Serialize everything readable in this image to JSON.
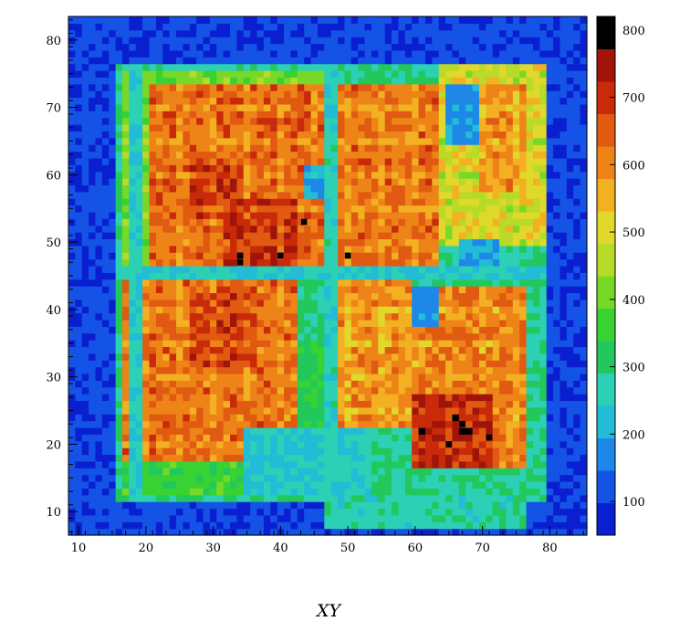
{
  "chart_data": {
    "type": "heatmap",
    "title": "",
    "xlabel": "XY",
    "ylabel": "",
    "xlim": [
      8.5,
      85.5
    ],
    "ylim": [
      6.5,
      83.5
    ],
    "bin_size": 1,
    "x_ticks": [
      "10",
      "20",
      "30",
      "40",
      "50",
      "60",
      "70",
      "80"
    ],
    "y_ticks": [
      "10",
      "20",
      "30",
      "40",
      "50",
      "60",
      "70",
      "80"
    ],
    "colorbar": {
      "min": 50,
      "max": 820,
      "ticks": [
        "100",
        "200",
        "300",
        "400",
        "500",
        "600",
        "700",
        "800"
      ],
      "palette": [
        "#0a1fd0",
        "#1553e6",
        "#1e88e8",
        "#22bcd6",
        "#2cd0b4",
        "#22c85c",
        "#38d232",
        "#78d828",
        "#b8da28",
        "#e0d82a",
        "#f2b022",
        "#ee8418",
        "#e05a12",
        "#c82a0a",
        "#a0140a",
        "#000000"
      ]
    },
    "grid": false,
    "regions": [
      {
        "label": "baseline noise",
        "x": [
          8.5,
          85.5
        ],
        "y": [
          6.5,
          83.5
        ],
        "value": 110
      },
      {
        "label": "outer frame",
        "x": [
          15.5,
          79.5
        ],
        "y": [
          11.5,
          76.5
        ],
        "value": 290
      },
      {
        "label": "upper-left inner rim",
        "x": [
          16.5,
          48
        ],
        "y": [
          45.5,
          75.5
        ],
        "value": 410
      },
      {
        "label": "upper-left modules",
        "x": [
          20.5,
          47.5
        ],
        "y": [
          46.5,
          73.5
        ],
        "value": 640
      },
      {
        "label": "hot block A",
        "x": [
          26.5,
          34.5
        ],
        "y": [
          53.5,
          61.5
        ],
        "value": 700
      },
      {
        "label": "hot block B",
        "x": [
          31.5,
          42.5
        ],
        "y": [
          46.5,
          56.5
        ],
        "value": 710
      },
      {
        "label": "cool pocket",
        "x": [
          43.5,
          48.5
        ],
        "y": [
          56.5,
          61.5
        ],
        "value": 210
      },
      {
        "label": "upper-center modules",
        "x": [
          48.5,
          63.5
        ],
        "y": [
          46.5,
          73.5
        ],
        "value": 630
      },
      {
        "label": "upper-right band",
        "x": [
          63.5,
          79.5
        ],
        "y": [
          49.5,
          76.5
        ],
        "value": 510
      },
      {
        "label": "upper-right modules",
        "x": [
          69.5,
          76.5
        ],
        "y": [
          57.5,
          73.5
        ],
        "value": 590
      },
      {
        "label": "upper-right gap",
        "x": [
          64.5,
          69.5
        ],
        "y": [
          64.5,
          73.5
        ],
        "value": 180
      },
      {
        "label": "right edge patch",
        "x": [
          66.5,
          72.5
        ],
        "y": [
          46.5,
          50.5
        ],
        "value": 200
      },
      {
        "label": "lower-left modules",
        "x": [
          16.5,
          42.5
        ],
        "y": [
          17.5,
          44.5
        ],
        "value": 630
      },
      {
        "label": "lower-left hot",
        "x": [
          26.5,
          36.5
        ],
        "y": [
          31.5,
          42.5
        ],
        "value": 690
      },
      {
        "label": "lower-left rim",
        "x": [
          16.5,
          36.5
        ],
        "y": [
          12.5,
          17.5
        ],
        "value": 360
      },
      {
        "label": "lower-center cool",
        "x": [
          42.5,
          48.5
        ],
        "y": [
          22.5,
          35.5
        ],
        "value": 330
      },
      {
        "label": "lower-center bottom",
        "x": [
          34.5,
          53.5
        ],
        "y": [
          12.5,
          22.5
        ],
        "value": 240
      },
      {
        "label": "lower-center modules",
        "x": [
          48.5,
          59.5
        ],
        "y": [
          22.5,
          44.5
        ],
        "value": 590
      },
      {
        "label": "lower-right modules",
        "x": [
          59.5,
          76.5
        ],
        "y": [
          16.5,
          43.5
        ],
        "value": 620
      },
      {
        "label": "lower-right hot",
        "x": [
          59.5,
          71.5
        ],
        "y": [
          16.5,
          27.5
        ],
        "value": 720
      },
      {
        "label": "lower-right cool",
        "x": [
          59.5,
          63.5
        ],
        "y": [
          37.5,
          43.5
        ],
        "value": 180
      },
      {
        "label": "bottom cyan strip",
        "x": [
          46.5,
          76.5
        ],
        "y": [
          7.5,
          12.5
        ],
        "value": 270
      }
    ],
    "dead_lines": [
      {
        "axis": "x",
        "at": 18.5,
        "range": [
          12.5,
          75.5
        ],
        "value": 250
      },
      {
        "axis": "x",
        "at": 47.5,
        "range": [
          11.5,
          75.5
        ],
        "value": 260
      },
      {
        "axis": "y",
        "at": 45.5,
        "range": [
          15.5,
          79.5
        ],
        "value": 250
      }
    ],
    "hot_pixels": [
      {
        "x": 43.5,
        "y": 53,
        "value": 820
      },
      {
        "x": 34,
        "y": 48,
        "value": 820
      },
      {
        "x": 34,
        "y": 47,
        "value": 820
      },
      {
        "x": 40,
        "y": 48,
        "value": 820
      },
      {
        "x": 50,
        "y": 48,
        "value": 820
      },
      {
        "x": 67,
        "y": 23,
        "value": 820
      },
      {
        "x": 65,
        "y": 20,
        "value": 820
      },
      {
        "x": 71,
        "y": 21,
        "value": 820
      }
    ]
  }
}
